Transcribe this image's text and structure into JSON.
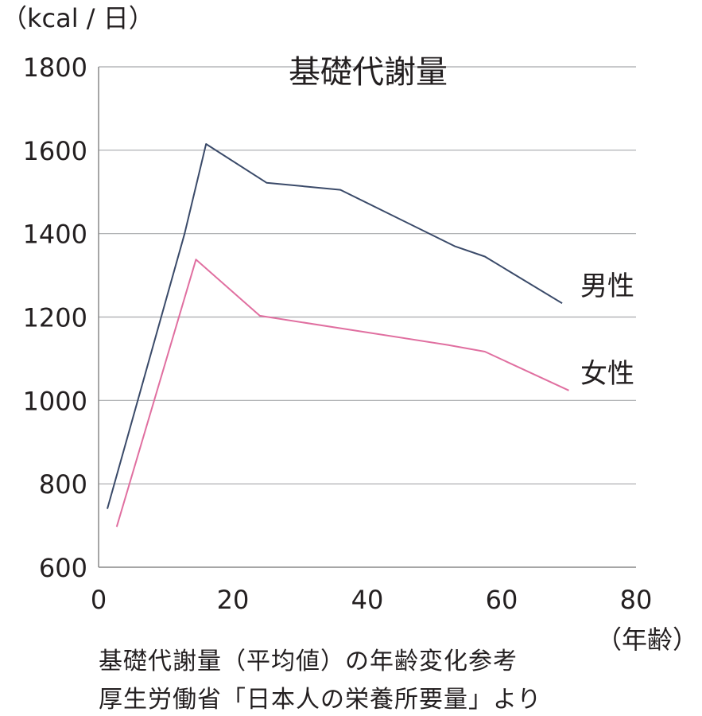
{
  "chart_data": {
    "type": "line",
    "title": "基礎代謝量",
    "ylabel": "（kcal / 日）",
    "xlabel": "（年齢）",
    "xlim": [
      0,
      80
    ],
    "ylim": [
      600,
      1800
    ],
    "xticks": [
      "0",
      "20",
      "40",
      "60",
      "80"
    ],
    "yticks": [
      "600",
      "800",
      "1000",
      "1200",
      "1400",
      "1600",
      "1800"
    ],
    "grid": true,
    "series": [
      {
        "name": "男性",
        "color": "#3a4a69",
        "points": [
          [
            1.3,
            740
          ],
          [
            12.8,
            1400
          ],
          [
            16,
            1615
          ],
          [
            25,
            1522
          ],
          [
            36,
            1505
          ],
          [
            53,
            1370
          ],
          [
            57.5,
            1345
          ],
          [
            69,
            1233
          ]
        ]
      },
      {
        "name": "女性",
        "color": "#e06fa0",
        "points": [
          [
            2.7,
            697
          ],
          [
            14.5,
            1338
          ],
          [
            24,
            1203
          ],
          [
            52,
            1133
          ],
          [
            57.5,
            1117
          ],
          [
            70,
            1024
          ]
        ]
      }
    ]
  },
  "caption": {
    "line1": "基礎代謝量（平均値）の年齢変化参考",
    "line2": "厚生労働省「日本人の栄養所要量」より"
  }
}
